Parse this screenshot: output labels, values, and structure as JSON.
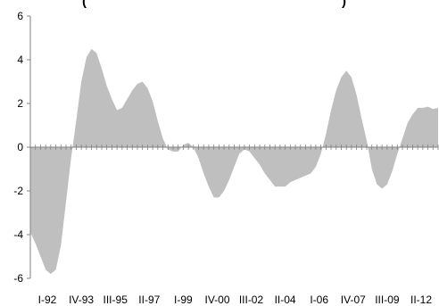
{
  "chart_data": {
    "type": "area",
    "title_fragment_left": "(",
    "title_fragment_right": ")",
    "xlabel": "",
    "ylabel": "",
    "ylim": [
      -6,
      6
    ],
    "yticks": [
      6,
      4,
      2,
      0,
      -2,
      -4,
      -6
    ],
    "ytick_labels": [
      "6",
      "4",
      "2",
      "0",
      "-2",
      "-4",
      "-6"
    ],
    "xtick_labels": [
      "I-92",
      "IV-93",
      "III-95",
      "II-97",
      "I-99",
      "IV-00",
      "III-02",
      "II-04",
      "I-06",
      "IV-07",
      "III-09",
      "II-12"
    ],
    "fill_color": "#bfbfbf",
    "axis_color": "#808080",
    "grid": false,
    "series": [
      {
        "values": [
          -3.9,
          -4.4,
          -5.0,
          -5.6,
          -5.8,
          -5.6,
          -4.5,
          -2.5,
          -0.5,
          1.2,
          3.0,
          4.1,
          4.5,
          4.3,
          3.6,
          2.8,
          2.2,
          1.7,
          1.8,
          2.2,
          2.6,
          2.9,
          3.0,
          2.7,
          2.1,
          1.2,
          0.4,
          -0.1,
          -0.2,
          -0.2,
          0.1,
          0.2,
          0.0,
          -0.5,
          -1.2,
          -1.8,
          -2.3,
          -2.3,
          -2.0,
          -1.5,
          -0.9,
          -0.3,
          -0.1,
          -0.2,
          -0.5,
          -0.8,
          -1.2,
          -1.5,
          -1.8,
          -1.8,
          -1.8,
          -1.6,
          -1.5,
          -1.4,
          -1.3,
          -1.2,
          -0.9,
          -0.3,
          0.6,
          1.7,
          2.6,
          3.2,
          3.5,
          3.2,
          2.4,
          1.3,
          0.3,
          -1.0,
          -1.7,
          -1.9,
          -1.7,
          -1.1,
          -0.3,
          0.4,
          1.1,
          1.5,
          1.8,
          1.8,
          1.85,
          1.75,
          1.8
        ]
      }
    ]
  }
}
